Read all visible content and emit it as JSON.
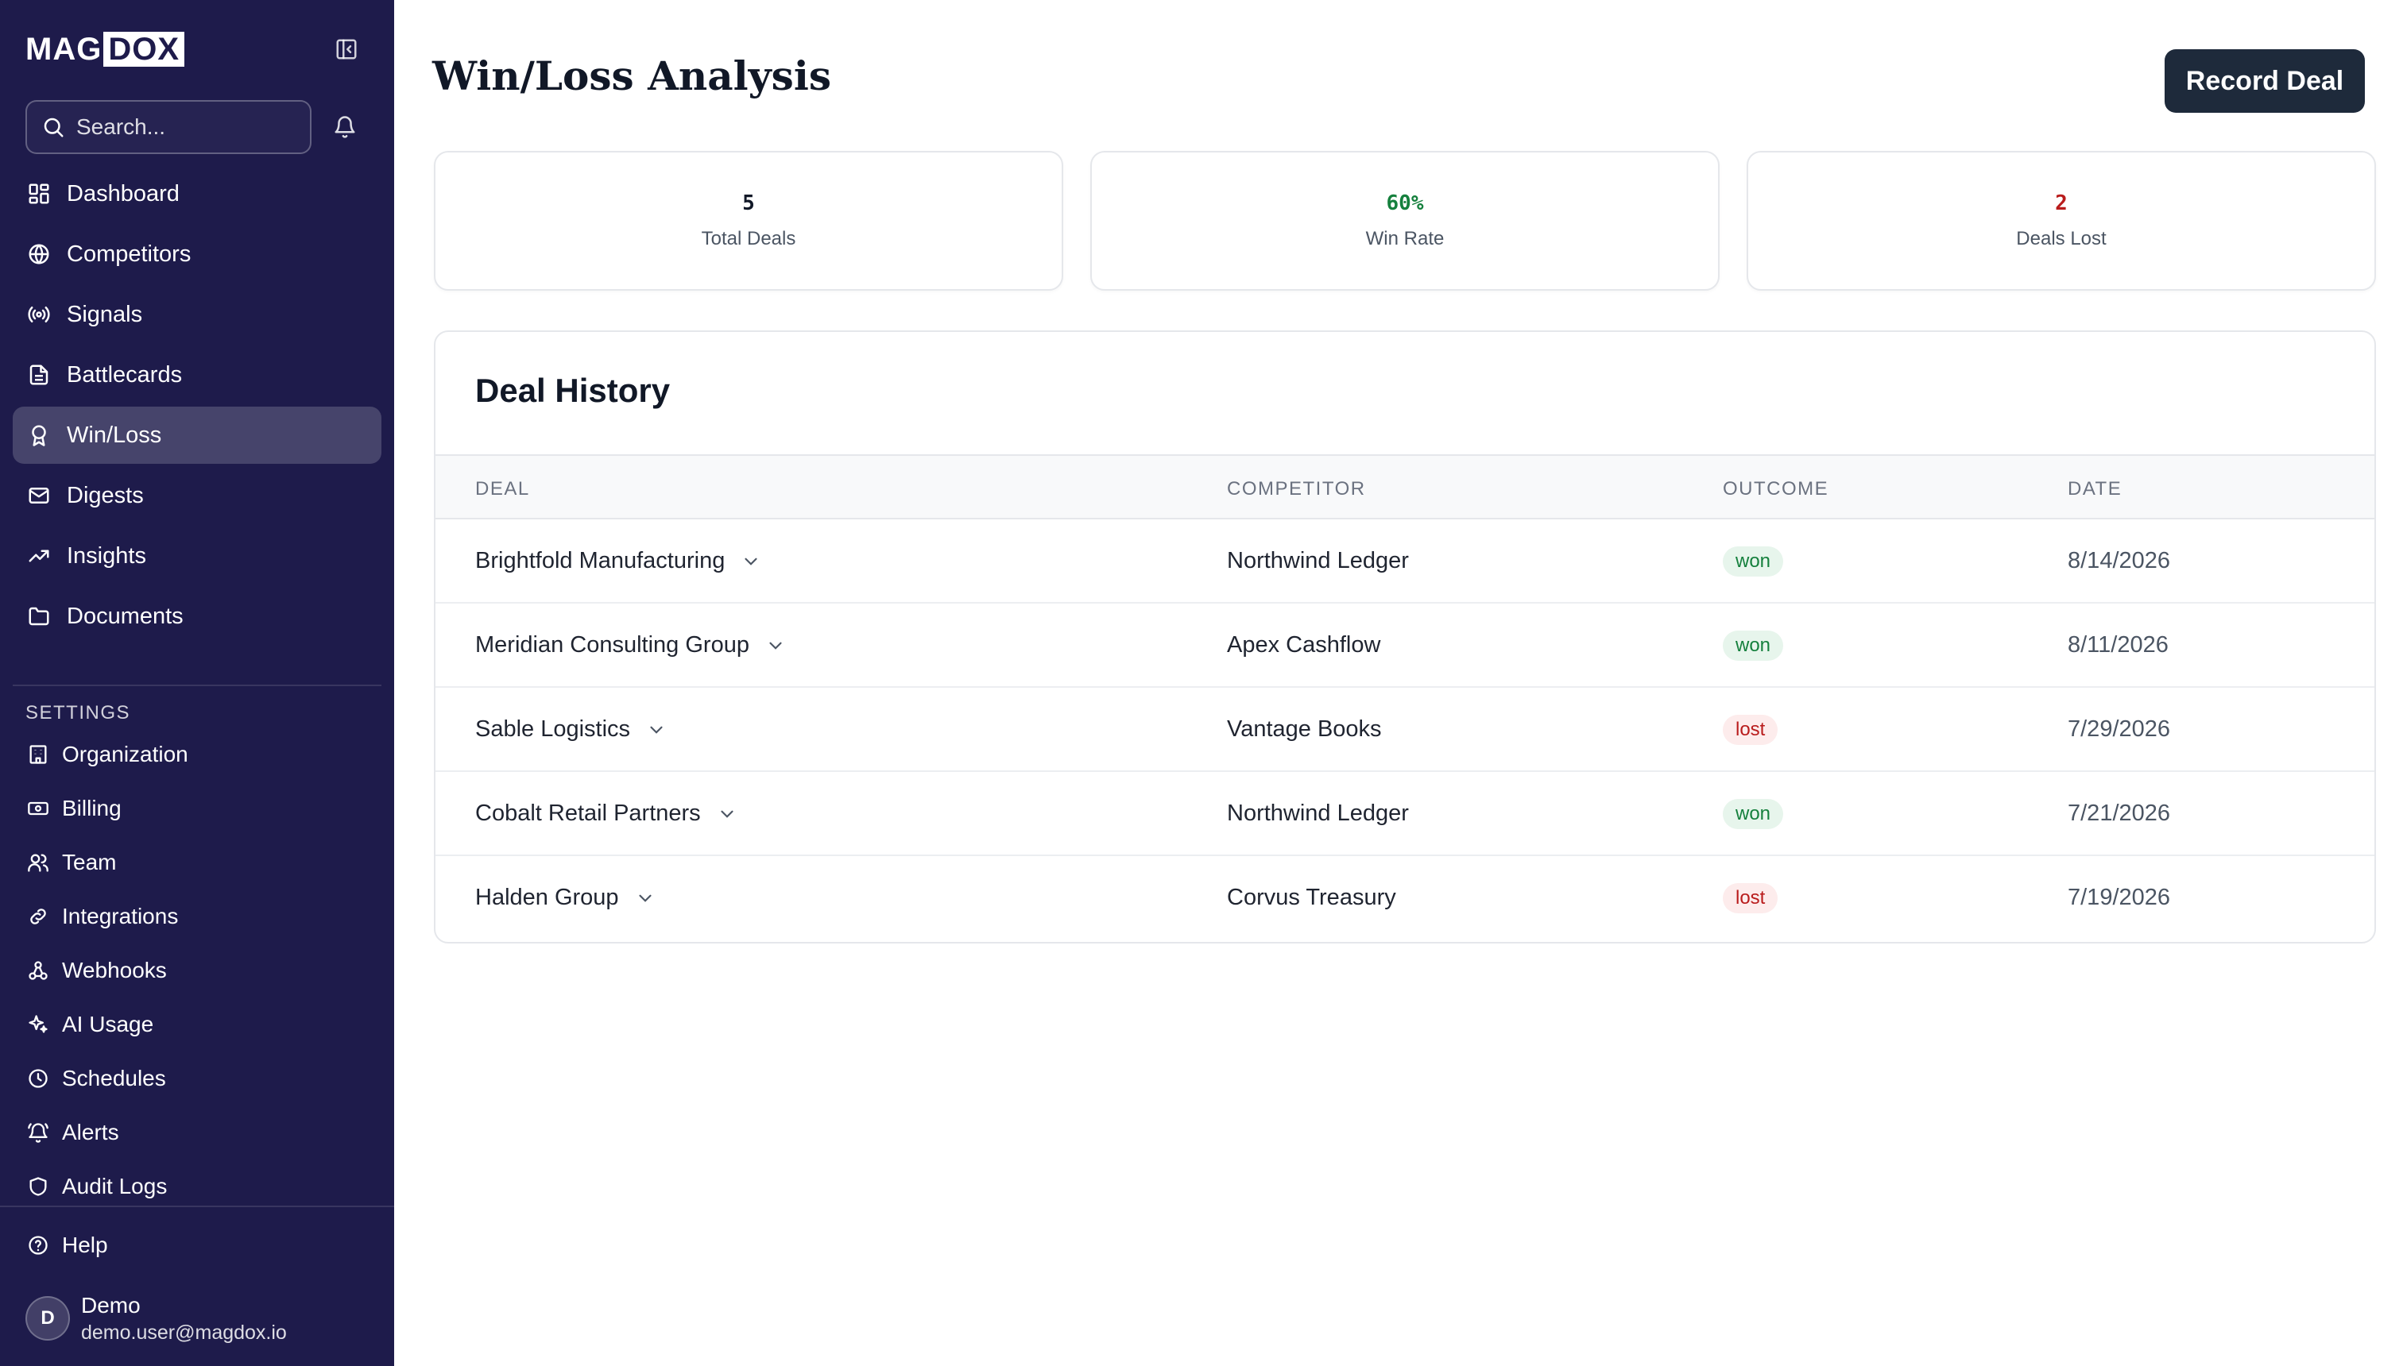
{
  "sidebar": {
    "logo_part1": "MAG",
    "logo_part2": "DOX",
    "search_placeholder": "Search...",
    "nav": [
      {
        "label": "Dashboard",
        "icon": "dashboard-icon"
      },
      {
        "label": "Competitors",
        "icon": "globe-icon"
      },
      {
        "label": "Signals",
        "icon": "signal-icon"
      },
      {
        "label": "Battlecards",
        "icon": "document-icon"
      },
      {
        "label": "Win/Loss",
        "icon": "award-icon",
        "active": true
      },
      {
        "label": "Digests",
        "icon": "mail-icon"
      },
      {
        "label": "Insights",
        "icon": "trending-up-icon"
      },
      {
        "label": "Documents",
        "icon": "folder-icon"
      }
    ],
    "settings_label": "SETTINGS",
    "settings": [
      {
        "label": "Organization",
        "icon": "building-icon"
      },
      {
        "label": "Billing",
        "icon": "banknote-icon"
      },
      {
        "label": "Team",
        "icon": "users-icon"
      },
      {
        "label": "Integrations",
        "icon": "link-icon"
      },
      {
        "label": "Webhooks",
        "icon": "webhook-icon"
      },
      {
        "label": "AI Usage",
        "icon": "sparkles-icon"
      },
      {
        "label": "Schedules",
        "icon": "clock-icon"
      },
      {
        "label": "Alerts",
        "icon": "bell-ring-icon"
      },
      {
        "label": "Audit Logs",
        "icon": "shield-icon"
      }
    ],
    "help_label": "Help",
    "user": {
      "initial": "D",
      "name": "Demo",
      "email": "demo.user@magdox.io"
    }
  },
  "main": {
    "title": "Win/Loss Analysis",
    "record_button": "Record Deal",
    "stats": [
      {
        "value": "5",
        "label": "Total Deals",
        "color": "#111827"
      },
      {
        "value": "60%",
        "label": "Win Rate",
        "color": "#15803d"
      },
      {
        "value": "2",
        "label": "Deals Lost",
        "color": "#b91c1c"
      }
    ],
    "history": {
      "title": "Deal History",
      "columns": [
        "DEAL",
        "COMPETITOR",
        "OUTCOME",
        "DATE"
      ],
      "rows": [
        {
          "deal": "Brightfold Manufacturing",
          "competitor": "Northwind Ledger",
          "outcome": "won",
          "date": "8/14/2026"
        },
        {
          "deal": "Meridian Consulting Group",
          "competitor": "Apex Cashflow",
          "outcome": "won",
          "date": "8/11/2026"
        },
        {
          "deal": "Sable Logistics",
          "competitor": "Vantage Books",
          "outcome": "lost",
          "date": "7/29/2026"
        },
        {
          "deal": "Cobalt Retail Partners",
          "competitor": "Northwind Ledger",
          "outcome": "won",
          "date": "7/21/2026"
        },
        {
          "deal": "Halden Group",
          "competitor": "Corvus Treasury",
          "outcome": "lost",
          "date": "7/19/2026"
        }
      ]
    }
  }
}
